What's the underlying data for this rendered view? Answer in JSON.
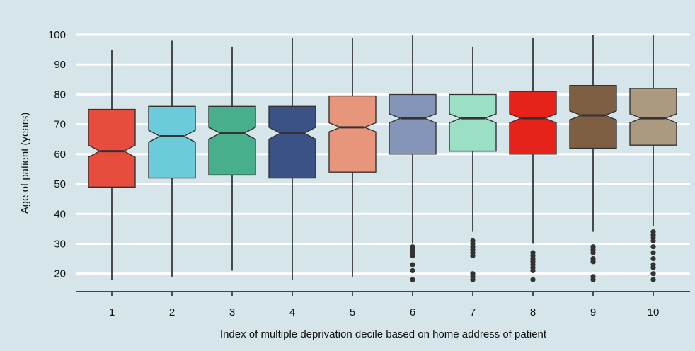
{
  "chart_data": {
    "type": "boxplot",
    "notched": true,
    "xlabel": "Index of multiple deprivation decile based on home address of patient",
    "ylabel": "Age of patient (years)",
    "ylim": [
      14,
      100
    ],
    "yticks": [
      20,
      30,
      40,
      50,
      60,
      70,
      80,
      90,
      100
    ],
    "grid": "horizontal",
    "background_color": "#d6e5ea",
    "categories": [
      "1",
      "2",
      "3",
      "4",
      "5",
      "6",
      "7",
      "8",
      "9",
      "10"
    ],
    "boxes": [
      {
        "category": "1",
        "whisker_low": 18,
        "q1": 49,
        "median": 61,
        "q3": 75,
        "whisker_high": 95,
        "notch_low": 59,
        "notch_high": 63,
        "outliers": [],
        "color": "#e84c3d"
      },
      {
        "category": "2",
        "whisker_low": 19,
        "q1": 52,
        "median": 66,
        "q3": 76,
        "whisker_high": 98,
        "notch_low": 64,
        "notch_high": 68,
        "outliers": [],
        "color": "#6bcbdb"
      },
      {
        "category": "3",
        "whisker_low": 21,
        "q1": 53,
        "median": 67,
        "q3": 76,
        "whisker_high": 96,
        "notch_low": 65,
        "notch_high": 69,
        "outliers": [],
        "color": "#48af8c"
      },
      {
        "category": "4",
        "whisker_low": 18,
        "q1": 52,
        "median": 67,
        "q3": 76,
        "whisker_high": 99,
        "notch_low": 65,
        "notch_high": 69,
        "outliers": [],
        "color": "#3b5287"
      },
      {
        "category": "5",
        "whisker_low": 19,
        "q1": 54,
        "median": 69,
        "q3": 79.5,
        "whisker_high": 99,
        "notch_low": 67.5,
        "notch_high": 70.5,
        "outliers": [],
        "color": "#e8967b"
      },
      {
        "category": "6",
        "whisker_low": 30,
        "q1": 60,
        "median": 72,
        "q3": 80,
        "whisker_high": 100,
        "notch_low": 70.5,
        "notch_high": 73.5,
        "outliers": [
          29,
          28,
          27,
          26,
          23,
          21,
          18
        ],
        "color": "#8595b8"
      },
      {
        "category": "7",
        "whisker_low": 34,
        "q1": 61,
        "median": 72,
        "q3": 80,
        "whisker_high": 96,
        "notch_low": 70.5,
        "notch_high": 73.5,
        "outliers": [
          31,
          30,
          29,
          28,
          27,
          26,
          20,
          19,
          18
        ],
        "color": "#9bdfc4"
      },
      {
        "category": "8",
        "whisker_low": 30,
        "q1": 60,
        "median": 72,
        "q3": 81,
        "whisker_high": 99,
        "notch_low": 70.5,
        "notch_high": 73.5,
        "outliers": [
          27,
          26,
          25,
          24,
          23,
          22,
          21,
          18
        ],
        "color": "#e5231b"
      },
      {
        "category": "9",
        "whisker_low": 34,
        "q1": 62,
        "median": 73,
        "q3": 83,
        "whisker_high": 100,
        "notch_low": 71.5,
        "notch_high": 74.5,
        "outliers": [
          29,
          28,
          27,
          25,
          24,
          19,
          18
        ],
        "color": "#7e5f44"
      },
      {
        "category": "10",
        "whisker_low": 36,
        "q1": 63,
        "median": 72,
        "q3": 82,
        "whisker_high": 100,
        "notch_low": 70.5,
        "notch_high": 73.5,
        "outliers": [
          34,
          33,
          32,
          31,
          29,
          27,
          25,
          23,
          22,
          20,
          18
        ],
        "color": "#ab9a7f"
      }
    ]
  }
}
